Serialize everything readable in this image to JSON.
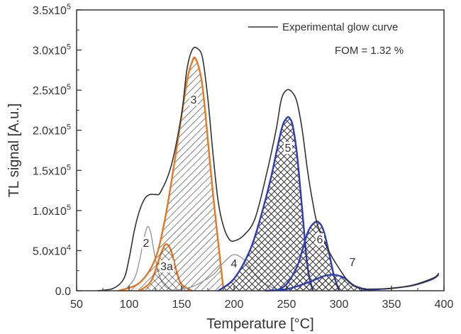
{
  "chart_data": {
    "type": "line",
    "xlabel": "Temperature [°C]",
    "ylabel": "TL signal [A.u.]",
    "xlim": [
      50,
      400
    ],
    "ylim": [
      0,
      350000
    ],
    "x_ticks": [
      {
        "value": 50,
        "label": "50"
      },
      {
        "value": 100,
        "label": "100"
      },
      {
        "value": 150,
        "label": "150"
      },
      {
        "value": 200,
        "label": "200"
      },
      {
        "value": 250,
        "label": "250"
      },
      {
        "value": 300,
        "label": "300"
      },
      {
        "value": 350,
        "label": "350"
      },
      {
        "value": 400,
        "label": "400"
      }
    ],
    "y_ticks": [
      {
        "value": 0,
        "base": "0.0",
        "exp": ""
      },
      {
        "value": 50000,
        "base": "5.0x10",
        "exp": "4"
      },
      {
        "value": 100000,
        "base": "1.0x10",
        "exp": "5"
      },
      {
        "value": 150000,
        "base": "1.5x10",
        "exp": "5"
      },
      {
        "value": 200000,
        "base": "2.0x10",
        "exp": "5"
      },
      {
        "value": 250000,
        "base": "2.5x10",
        "exp": "5"
      },
      {
        "value": 300000,
        "base": "3.0x10",
        "exp": "5"
      },
      {
        "value": 350000,
        "base": "3.5x10",
        "exp": "5"
      }
    ],
    "grid": false,
    "legend": {
      "position": "top-right",
      "entry": "Experimental glow curve"
    },
    "annotation": "FOM = 1.32 %",
    "experimental": {
      "x": [
        70,
        85,
        95,
        100,
        105,
        110,
        115,
        120,
        125,
        130,
        140,
        150,
        155,
        160,
        165,
        170,
        175,
        180,
        185,
        190,
        195,
        200,
        210,
        220,
        230,
        240,
        245,
        250,
        255,
        260,
        265,
        270,
        275,
        280,
        290,
        300,
        310,
        320,
        330,
        350,
        370,
        390,
        395
      ],
      "y": [
        0,
        3000,
        15000,
        40000,
        75000,
        100000,
        115000,
        120000,
        120000,
        123000,
        155000,
        220000,
        275000,
        300000,
        302000,
        290000,
        240000,
        170000,
        110000,
        80000,
        65000,
        62000,
        70000,
        90000,
        140000,
        200000,
        238000,
        250000,
        248000,
        235000,
        200000,
        150000,
        110000,
        80000,
        50000,
        28000,
        10000,
        3000,
        2000,
        3000,
        7000,
        16000,
        22000
      ]
    },
    "peaks": [
      {
        "label": "2",
        "color": "#999999",
        "hatch": "none",
        "x": [
          95,
          105,
          110,
          115,
          118,
          121,
          125,
          130,
          137,
          145
        ],
        "y": [
          0,
          15000,
          38000,
          70000,
          80000,
          70000,
          40000,
          15000,
          3000,
          0
        ]
      },
      {
        "label": "3a",
        "color": "#e87722",
        "hatch": "diag-down",
        "x": [
          110,
          120,
          125,
          130,
          135,
          140,
          145,
          150,
          160
        ],
        "y": [
          0,
          10000,
          25000,
          45000,
          58000,
          50000,
          25000,
          8000,
          0
        ]
      },
      {
        "label": "3",
        "color": "#e87722",
        "hatch": "diag-up",
        "x": [
          90,
          110,
          125,
          135,
          145,
          155,
          160,
          163,
          168,
          172,
          180,
          190
        ],
        "y": [
          0,
          10000,
          40000,
          95000,
          175000,
          260000,
          285000,
          290000,
          270000,
          230000,
          120000,
          0
        ]
      },
      {
        "label": "4",
        "color": "#999999",
        "hatch": "none",
        "x": [
          140,
          160,
          180,
          190,
          200,
          210,
          220,
          230,
          245
        ],
        "y": [
          0,
          5000,
          20000,
          35000,
          45000,
          38000,
          20000,
          8000,
          0
        ]
      },
      {
        "label": "5",
        "color": "#2e3cb8",
        "hatch": "cross",
        "x": [
          185,
          200,
          215,
          225,
          235,
          245,
          250,
          253,
          256,
          260,
          265,
          270,
          275
        ],
        "y": [
          0,
          15000,
          50000,
          90000,
          140000,
          200000,
          215000,
          215000,
          205000,
          170000,
          100000,
          30000,
          0
        ]
      },
      {
        "label": "6",
        "color": "#2e3cb8",
        "hatch": "cross",
        "x": [
          240,
          250,
          260,
          265,
          270,
          275,
          280,
          285,
          290,
          295,
          300
        ],
        "y": [
          0,
          8000,
          30000,
          50000,
          72000,
          83000,
          86000,
          76000,
          50000,
          20000,
          0
        ]
      },
      {
        "label": "7",
        "color": "#2e3cb8",
        "hatch": "cross",
        "x": [
          230,
          250,
          270,
          285,
          295,
          305,
          315,
          330
        ],
        "y": [
          0,
          2000,
          10000,
          18000,
          20000,
          16000,
          6000,
          0
        ]
      }
    ],
    "tail": {
      "color": "#2e3cb8",
      "x": [
        320,
        330,
        340,
        350,
        360,
        370,
        380,
        390,
        395
      ],
      "y": [
        0,
        1000,
        2000,
        3000,
        4500,
        6500,
        10000,
        15000,
        20000
      ]
    }
  }
}
